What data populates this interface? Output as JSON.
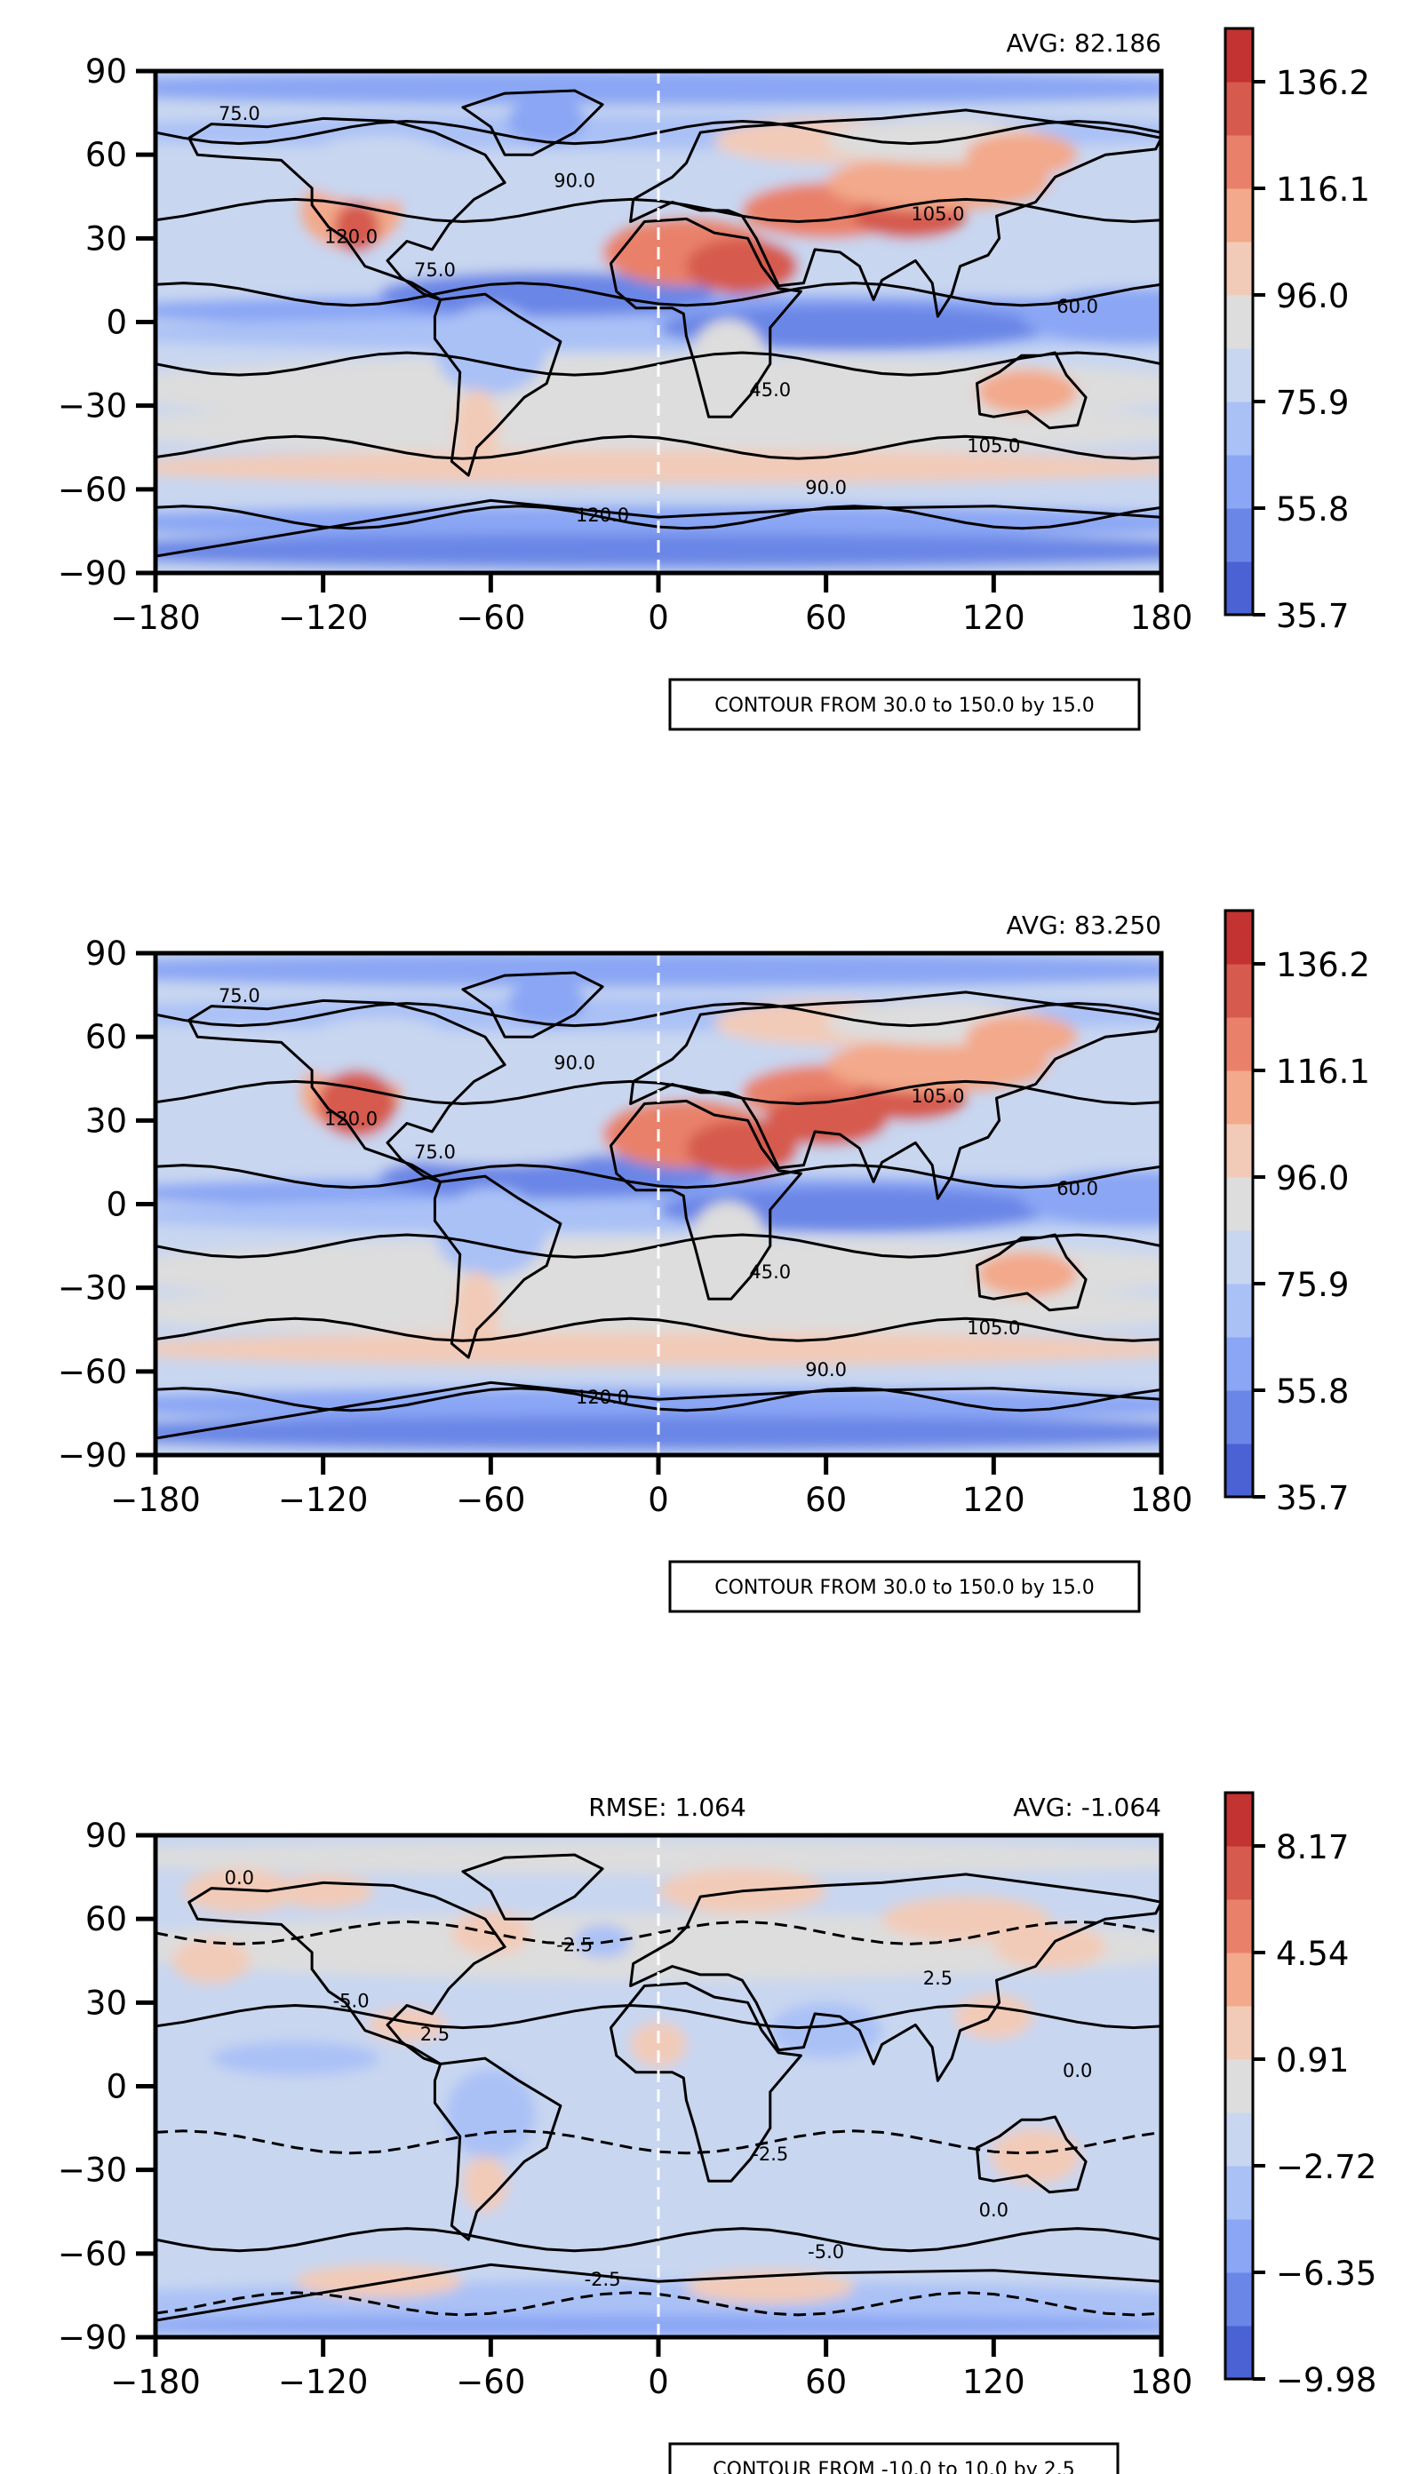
{
  "chart_data": [
    {
      "type": "heatmap",
      "top_right_label": "AVG: 82.186",
      "top_center_label": "",
      "contour_note": "CONTOUR FROM 30.0 to 150.0 by 15.0",
      "x_ticks": [
        "−180",
        "−120",
        "−60",
        "0",
        "60",
        "120",
        "180"
      ],
      "y_ticks": [
        "90",
        "60",
        "30",
        "0",
        "−30",
        "−60",
        "−90"
      ],
      "xlim": [
        -180,
        180
      ],
      "ylim": [
        -90,
        90
      ],
      "colorbar": {
        "range": [
          35.7,
          146.2
        ],
        "ticks": [
          "136.2",
          "116.1",
          "96.0",
          "75.9",
          "55.8",
          "35.7"
        ]
      },
      "contour_labels": [
        "75.0",
        "90.0",
        "105.0",
        "120.0",
        "60.0",
        "45.0"
      ]
    },
    {
      "type": "heatmap",
      "top_right_label": "AVG: 83.250",
      "top_center_label": "",
      "contour_note": "CONTOUR FROM 30.0 to 150.0 by 15.0",
      "x_ticks": [
        "−180",
        "−120",
        "−60",
        "0",
        "60",
        "120",
        "180"
      ],
      "y_ticks": [
        "90",
        "60",
        "30",
        "0",
        "−30",
        "−60",
        "−90"
      ],
      "xlim": [
        -180,
        180
      ],
      "ylim": [
        -90,
        90
      ],
      "colorbar": {
        "range": [
          35.7,
          146.2
        ],
        "ticks": [
          "136.2",
          "116.1",
          "96.0",
          "75.9",
          "55.8",
          "35.7"
        ]
      },
      "contour_labels": [
        "75.0",
        "90.0",
        "105.0",
        "120.0",
        "60.0",
        "45.0"
      ]
    },
    {
      "type": "heatmap",
      "top_right_label": "AVG: -1.064",
      "top_center_label": "RMSE: 1.064",
      "contour_note": "CONTOUR FROM -10.0 to 10.0 by 2.5",
      "x_ticks": [
        "−180",
        "−120",
        "−60",
        "0",
        "60",
        "120",
        "180"
      ],
      "y_ticks": [
        "90",
        "60",
        "30",
        "0",
        "−30",
        "−60",
        "−90"
      ],
      "xlim": [
        -180,
        180
      ],
      "ylim": [
        -90,
        90
      ],
      "colorbar": {
        "range": [
          -9.98,
          9.98
        ],
        "ticks": [
          "8.17",
          "4.54",
          "0.91",
          "−2.72",
          "−6.35",
          "−9.98"
        ]
      },
      "contour_labels": [
        "0.0",
        "-2.5",
        "2.5",
        "-5.0"
      ]
    }
  ],
  "colors": {
    "scale": [
      "#4a62d4",
      "#6a86e6",
      "#8aa6f4",
      "#aac1f6",
      "#c8d6f0",
      "#dddddd",
      "#f2cbb8",
      "#f3a98b",
      "#e9816a",
      "#d65a4d",
      "#c33331"
    ],
    "land_warm": "#e9816a",
    "axis": "#000000"
  }
}
